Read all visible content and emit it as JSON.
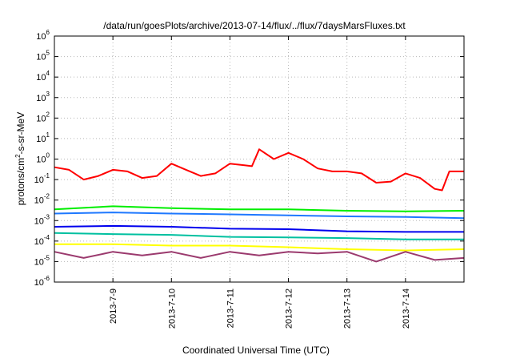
{
  "chart_data": {
    "type": "line",
    "title": "/data/run/goesPlots/archive/2013-07-14/flux/../flux/7daysMarsFluxes.txt",
    "xlabel": "Coordinated Universal Time (UTC)",
    "ylabel_base": "protons/cm",
    "ylabel_sup": "2",
    "ylabel_rest": "-s-sr-MeV",
    "yscale": "log",
    "ylim_exp": [
      -6,
      6
    ],
    "y_ticks": [
      {
        "base": "10",
        "exp": "6"
      },
      {
        "base": "10",
        "exp": "5"
      },
      {
        "base": "10",
        "exp": "4"
      },
      {
        "base": "10",
        "exp": "3"
      },
      {
        "base": "10",
        "exp": "2"
      },
      {
        "base": "10",
        "exp": "1"
      },
      {
        "base": "10",
        "exp": "0"
      },
      {
        "base": "10",
        "exp": "-1"
      },
      {
        "base": "10",
        "exp": "-2"
      },
      {
        "base": "10",
        "exp": "-3"
      },
      {
        "base": "10",
        "exp": "-4"
      },
      {
        "base": "10",
        "exp": "-5"
      },
      {
        "base": "10",
        "exp": "-6"
      }
    ],
    "x_range_days": [
      "2013-07-08 00:00",
      "2013-07-15 00:00"
    ],
    "x_ticks": [
      "2013-7-9",
      "2013-7-10",
      "2013-7-11",
      "2013-7-12",
      "2013-7-13",
      "2013-7-14"
    ],
    "grid": true,
    "series": [
      {
        "color": "#ff0000",
        "x": [
          "2013-07-08 00:00",
          "2013-07-08 06:00",
          "2013-07-08 12:00",
          "2013-07-08 18:00",
          "2013-07-09 00:00",
          "2013-07-09 06:00",
          "2013-07-09 12:00",
          "2013-07-09 18:00",
          "2013-07-10 00:00",
          "2013-07-10 06:00",
          "2013-07-10 12:00",
          "2013-07-10 18:00",
          "2013-07-11 00:00",
          "2013-07-11 06:00",
          "2013-07-11 09:00",
          "2013-07-11 12:00",
          "2013-07-11 18:00",
          "2013-07-12 00:00",
          "2013-07-12 06:00",
          "2013-07-12 12:00",
          "2013-07-12 18:00",
          "2013-07-13 00:00",
          "2013-07-13 06:00",
          "2013-07-13 12:00",
          "2013-07-13 18:00",
          "2013-07-14 00:00",
          "2013-07-14 06:00",
          "2013-07-14 12:00",
          "2013-07-14 15:00",
          "2013-07-14 18:00",
          "2013-07-15 00:00"
        ],
        "y": [
          0.4,
          0.3,
          0.1,
          0.15,
          0.3,
          0.25,
          0.12,
          0.15,
          0.6,
          0.3,
          0.15,
          0.2,
          0.6,
          0.5,
          0.45,
          3.0,
          1.0,
          2.0,
          1.0,
          0.35,
          0.25,
          0.25,
          0.2,
          0.07,
          0.08,
          0.2,
          0.12,
          0.035,
          0.03,
          0.25,
          0.25
        ]
      },
      {
        "color": "#00ee00",
        "x": [
          "2013-07-08 00:00",
          "2013-07-09 00:00",
          "2013-07-10 00:00",
          "2013-07-11 00:00",
          "2013-07-12 00:00",
          "2013-07-13 00:00",
          "2013-07-14 00:00",
          "2013-07-15 00:00"
        ],
        "y": [
          0.0035,
          0.005,
          0.004,
          0.0035,
          0.0035,
          0.003,
          0.0028,
          0.003
        ]
      },
      {
        "color": "#1e78ff",
        "x": [
          "2013-07-08 00:00",
          "2013-07-09 00:00",
          "2013-07-10 00:00",
          "2013-07-11 00:00",
          "2013-07-12 00:00",
          "2013-07-13 00:00",
          "2013-07-14 00:00",
          "2013-07-15 00:00"
        ],
        "y": [
          0.0022,
          0.0025,
          0.0022,
          0.002,
          0.0018,
          0.0016,
          0.0015,
          0.0013
        ]
      },
      {
        "color": "#0000ee",
        "x": [
          "2013-07-08 00:00",
          "2013-07-09 00:00",
          "2013-07-10 00:00",
          "2013-07-11 00:00",
          "2013-07-12 00:00",
          "2013-07-13 00:00",
          "2013-07-14 00:00",
          "2013-07-15 00:00"
        ],
        "y": [
          0.0005,
          0.00055,
          0.0005,
          0.0004,
          0.00038,
          0.0003,
          0.00028,
          0.00028
        ]
      },
      {
        "color": "#00c0a0",
        "x": [
          "2013-07-08 00:00",
          "2013-07-09 00:00",
          "2013-07-10 00:00",
          "2013-07-11 00:00",
          "2013-07-12 00:00",
          "2013-07-13 00:00",
          "2013-07-14 00:00",
          "2013-07-15 00:00"
        ],
        "y": [
          0.00025,
          0.00022,
          0.0002,
          0.00016,
          0.00015,
          0.00014,
          0.00012,
          0.00012
        ]
      },
      {
        "color": "#ffff00",
        "x": [
          "2013-07-08 00:00",
          "2013-07-09 00:00",
          "2013-07-10 00:00",
          "2013-07-11 00:00",
          "2013-07-12 00:00",
          "2013-07-13 00:00",
          "2013-07-14 00:00",
          "2013-07-15 00:00"
        ],
        "y": [
          7e-05,
          7e-05,
          6e-05,
          6e-05,
          5e-05,
          4e-05,
          3.5e-05,
          4e-05
        ]
      },
      {
        "color": "#9b3a6e",
        "x": [
          "2013-07-08 00:00",
          "2013-07-08 12:00",
          "2013-07-09 00:00",
          "2013-07-09 12:00",
          "2013-07-10 00:00",
          "2013-07-10 12:00",
          "2013-07-11 00:00",
          "2013-07-11 12:00",
          "2013-07-12 00:00",
          "2013-07-12 12:00",
          "2013-07-13 00:00",
          "2013-07-13 12:00",
          "2013-07-14 00:00",
          "2013-07-14 12:00",
          "2013-07-15 00:00"
        ],
        "y": [
          3e-05,
          1.5e-05,
          3e-05,
          2e-05,
          3e-05,
          1.5e-05,
          3e-05,
          2e-05,
          3e-05,
          2.5e-05,
          3e-05,
          1e-05,
          3e-05,
          1.2e-05,
          1.5e-05
        ]
      }
    ]
  }
}
